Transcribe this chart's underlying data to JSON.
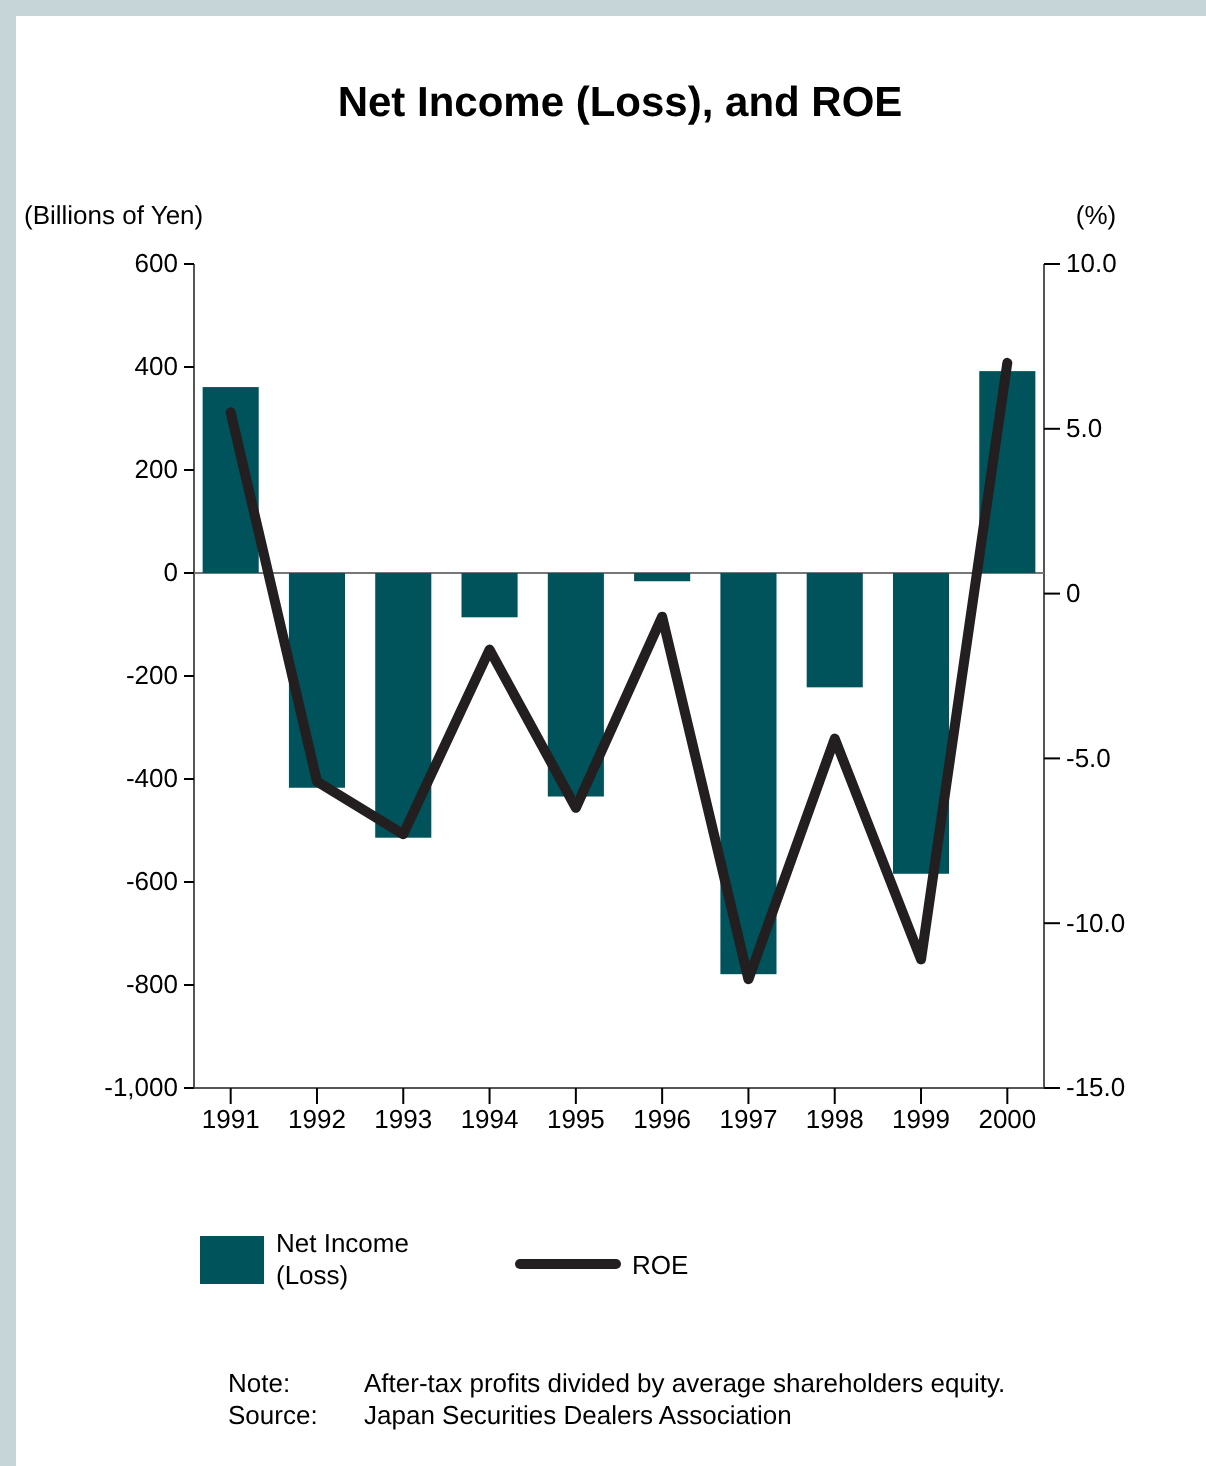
{
  "chart_data": {
    "type": "bar",
    "title": "Net Income (Loss), and ROE",
    "ylabel": "(Billions of Yen)",
    "y2label": "(%)",
    "categories": [
      "1991",
      "1992",
      "1993",
      "1994",
      "1995",
      "1996",
      "1997",
      "1998",
      "1999",
      "2000"
    ],
    "series": [
      {
        "name": "Net Income (Loss)",
        "color": "#00535a",
        "values": [
          361,
          -417,
          -514,
          -86,
          -434,
          -16,
          -779,
          -222,
          -584,
          392
        ]
      },
      {
        "name": "ROE",
        "type": "line",
        "axis": "y2",
        "color": "#231f20",
        "values": [
          5.5,
          -5.7,
          -7.3,
          -1.7,
          -6.5,
          -0.7,
          -11.7,
          -4.4,
          -11.1,
          7.0
        ]
      }
    ],
    "ylim": [
      -1000,
      600
    ],
    "yticks": [
      {
        "value": -1000,
        "label": "-1,000"
      },
      -800,
      -600,
      -400,
      -200,
      0,
      200,
      400,
      600
    ],
    "y2lim": [
      -15,
      10
    ],
    "y2ticks": [
      {
        "value": -15,
        "label": "-15.0"
      },
      {
        "value": -10,
        "label": "-10.0"
      },
      {
        "value": -5,
        "label": "-5.0"
      },
      0,
      {
        "value": 5,
        "label": "5.0"
      },
      {
        "value": 10,
        "label": "10.0"
      }
    ],
    "ref_lines": [
      {
        "axis": "y",
        "value": 0
      }
    ],
    "legend": "bottom",
    "grid": false,
    "marker": "none",
    "line_style": "solid",
    "annotations": [
      "Note:     After-tax profits divided by average shareholders equity.",
      "Source:   Japan Securities Dealers Association"
    ]
  }
}
